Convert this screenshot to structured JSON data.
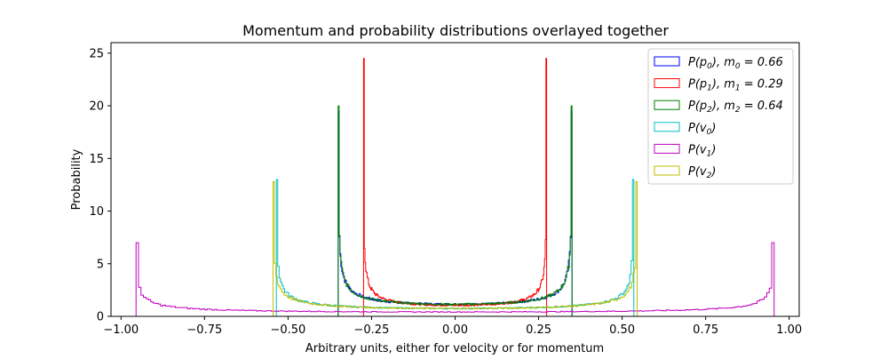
{
  "chart_data": {
    "type": "histogram-step",
    "title": "Momentum and probability distributions overlayed together",
    "xlabel": "Arbitrary units, either for velocity or for momentum",
    "ylabel": "Probability",
    "xlim": [
      -1.03,
      1.03
    ],
    "ylim": [
      0,
      26
    ],
    "xticks": [
      -1.0,
      -0.75,
      -0.5,
      -0.25,
      0.0,
      0.25,
      0.5,
      0.75,
      1.0
    ],
    "xtick_labels": [
      "−1.00",
      "−0.75",
      "−0.50",
      "−0.25",
      "0.00",
      "0.25",
      "0.50",
      "0.75",
      "1.00"
    ],
    "yticks": [
      0,
      5,
      10,
      15,
      20,
      25
    ],
    "ytick_labels": [
      "0",
      "5",
      "10",
      "15",
      "20",
      "25"
    ],
    "legend_position": "top-right",
    "series": [
      {
        "name": "P(p0), m0 = 0.66",
        "color": "#0000ff",
        "edge": 0.35,
        "peak": 19.5,
        "floor": 1.15
      },
      {
        "name": "P(p1), m1 = 0.29",
        "color": "#ff0000",
        "edge": 0.274,
        "peak": 24.5,
        "floor": 1.05
      },
      {
        "name": "P(p2), m2 = 0.64",
        "color": "#008000",
        "edge": 0.35,
        "peak": 20.0,
        "floor": 1.15
      },
      {
        "name": "P(v0)",
        "color": "#00bfbf",
        "edge": 0.535,
        "peak": 13.0,
        "floor": 0.75
      },
      {
        "name": "P(v1)",
        "color": "#bf00bf",
        "edge": 0.955,
        "peak": 7.0,
        "floor": 0.42
      },
      {
        "name": "P(v2)",
        "color": "#bfbf00",
        "edge": 0.545,
        "peak": 12.8,
        "floor": 0.75
      }
    ]
  },
  "legend": {
    "entries": [
      {
        "base": "P(p",
        "sub": "0",
        "mid": "), m",
        "msub": "0",
        "tail": " = 0.66"
      },
      {
        "base": "P(p",
        "sub": "1",
        "mid": "), m",
        "msub": "1",
        "tail": " = 0.29"
      },
      {
        "base": "P(p",
        "sub": "2",
        "mid": "), m",
        "msub": "2",
        "tail": " = 0.64"
      },
      {
        "base": "P(v",
        "sub": "0",
        "mid": ")",
        "msub": "",
        "tail": ""
      },
      {
        "base": "P(v",
        "sub": "1",
        "mid": ")",
        "msub": "",
        "tail": ""
      },
      {
        "base": "P(v",
        "sub": "2",
        "mid": ")",
        "msub": "",
        "tail": ""
      }
    ]
  }
}
